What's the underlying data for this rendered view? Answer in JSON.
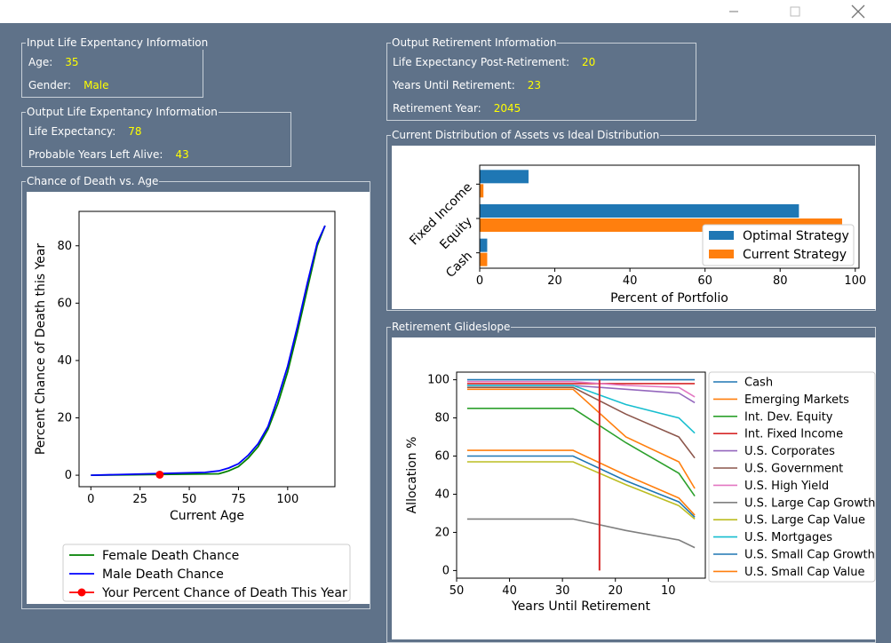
{
  "window": {
    "minimize_icon": "minimize-icon",
    "maximize_icon": "maximize-icon",
    "close_icon": "close-icon"
  },
  "input_life": {
    "title": "Input Life Expentancy Information",
    "age_label": "Age:",
    "age_value": "35",
    "gender_label": "Gender:",
    "gender_value": "Male"
  },
  "output_life": {
    "title": "Output Life Expentancy Information",
    "le_label": "Life Expectancy:",
    "le_value": "78",
    "years_label": "Probable Years Left Alive:",
    "years_value": "43"
  },
  "output_retirement": {
    "title": "Output Retirement Information",
    "post_label": "Life Expectancy Post-Retirement:",
    "post_value": "20",
    "until_label": "Years Until Retirement:",
    "until_value": "23",
    "year_label": "Retirement Year:",
    "year_value": "2045"
  },
  "death_group_title": "Chance of Death vs. Age",
  "assets_group_title": "Current Distribution of Assets vs Ideal Distribution",
  "glide_group_title": "Retirement Glideslope",
  "colors": {
    "bg": "#5f7289",
    "yellow": "#ffff00",
    "female": "#008000",
    "male": "#0000ff",
    "you": "#ff0000"
  },
  "chart_data": [
    {
      "type": "line",
      "xlabel": "Current Age",
      "ylabel": "Percent Chance of Death this Year",
      "xlim": [
        -6,
        124
      ],
      "ylim": [
        -4,
        92
      ],
      "xticks": [
        0,
        25,
        50,
        75,
        100
      ],
      "yticks": [
        0,
        20,
        40,
        60,
        80
      ],
      "legend_placement": "below",
      "series": [
        {
          "name": "Female Death Chance",
          "color": "#008000",
          "x": [
            0,
            65,
            70,
            75,
            80,
            85,
            90,
            95,
            100,
            105,
            110,
            115,
            119
          ],
          "y": [
            0,
            0.5,
            1.5,
            3,
            6,
            10,
            16,
            25,
            36,
            50,
            65,
            80,
            87
          ]
        },
        {
          "name": "Male Death Chance",
          "color": "#0000ff",
          "x": [
            0,
            58,
            65,
            70,
            75,
            80,
            85,
            90,
            95,
            100,
            105,
            110,
            115,
            119
          ],
          "y": [
            0,
            1,
            1.5,
            2.5,
            4,
            7,
            11,
            17,
            27,
            38,
            52,
            67,
            81,
            87
          ]
        },
        {
          "name": "Your Percent Chance of Death This Year",
          "color": "#ff0000",
          "x": [
            35
          ],
          "y": [
            0.2
          ],
          "marker": true
        }
      ]
    },
    {
      "type": "bar",
      "orientation": "horizontal",
      "categories": [
        "Cash",
        "Equity",
        "Fixed Income"
      ],
      "xlabel": "Percent of Portfolio",
      "xlim": [
        0,
        101
      ],
      "xticks": [
        0,
        20,
        40,
        60,
        80,
        100
      ],
      "legend_placement": "lower-right",
      "series": [
        {
          "name": "Optimal Strategy",
          "color": "#1f77b4",
          "values": [
            2,
            85,
            13
          ]
        },
        {
          "name": "Current Strategy",
          "color": "#ff7f0e",
          "values": [
            2,
            96.5,
            1
          ]
        }
      ]
    },
    {
      "type": "line",
      "xlabel": "Years Until Retirement",
      "ylabel": "Allocation %",
      "xlim": [
        50,
        3
      ],
      "ylim": [
        -4,
        104
      ],
      "xticks": [
        50,
        40,
        30,
        20,
        10
      ],
      "yticks": [
        0,
        20,
        40,
        60,
        80,
        100
      ],
      "vline": {
        "x": 23,
        "color": "#d62728"
      },
      "legend_placement": "right",
      "x": [
        48,
        38,
        28,
        18,
        8,
        5
      ],
      "series": [
        {
          "name": "Cash",
          "color": "#1f77b4",
          "values": [
            100,
            100,
            100,
            100,
            100,
            100
          ]
        },
        {
          "name": "Emerging Markets",
          "color": "#ff7f0e",
          "values": [
            95,
            95,
            95,
            70,
            57,
            43
          ]
        },
        {
          "name": "Int. Dev. Equity",
          "color": "#2ca02c",
          "values": [
            85,
            85,
            85,
            67,
            51,
            39
          ]
        },
        {
          "name": "Int. Fixed Income",
          "color": "#d62728",
          "values": [
            98,
            98,
            98,
            98,
            98,
            98
          ]
        },
        {
          "name": "U.S. Corporates",
          "color": "#9467bd",
          "values": [
            97,
            97,
            97,
            95,
            93,
            88
          ]
        },
        {
          "name": "U.S. Government",
          "color": "#8c564b",
          "values": [
            96,
            96,
            96,
            82,
            70,
            59
          ]
        },
        {
          "name": "U.S. High Yield",
          "color": "#e377c2",
          "values": [
            99,
            99,
            99,
            97,
            96,
            91
          ]
        },
        {
          "name": "U.S. Large Cap Growth",
          "color": "#7f7f7f",
          "values": [
            27,
            27,
            27,
            21,
            16,
            12
          ]
        },
        {
          "name": "U.S. Large Cap Value",
          "color": "#bcbd22",
          "values": [
            57,
            57,
            57,
            45,
            34,
            27
          ]
        },
        {
          "name": "U.S. Mortgages",
          "color": "#17becf",
          "values": [
            97,
            97,
            97,
            87,
            80,
            72
          ]
        },
        {
          "name": "U.S. Small Cap Growth",
          "color": "#1f77b4",
          "values": [
            60,
            60,
            60,
            47,
            36,
            28
          ]
        },
        {
          "name": "U.S. Small Cap Value",
          "color": "#ff7f0e",
          "values": [
            63,
            63,
            63,
            50,
            38,
            29
          ]
        }
      ]
    }
  ]
}
